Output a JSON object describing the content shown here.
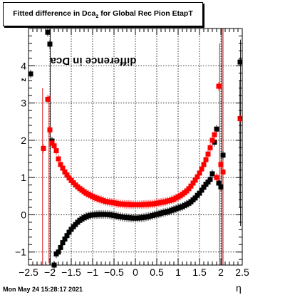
{
  "title": {
    "prefix": "Fitted difference in Dca",
    "sub": "z",
    "suffix": " for Global Rec Pion EtapT"
  },
  "ylabel": {
    "prefix": "difference in Dca",
    "sub": "z"
  },
  "xlabel": "η",
  "timestamp": "Mon May 24 15:28:17 2021",
  "colors": {
    "black_series": "#000000",
    "red_series": "#ff0000",
    "grid": "#000000"
  },
  "chart_data": {
    "type": "scatter",
    "xlim": [
      -2.5,
      2.5
    ],
    "ylim": [
      -1.35,
      5.0
    ],
    "xticks": [
      -2.5,
      -2,
      -1.5,
      -1,
      -0.5,
      0,
      0.5,
      1,
      1.5,
      2,
      2.5
    ],
    "xtick_labels": [
      "−2.5",
      "−2",
      "−1.5",
      "−1",
      "−0.5",
      "0",
      "0.5",
      "1",
      "1.5",
      "2",
      "2.5"
    ],
    "yticks": [
      -1,
      0,
      1,
      2,
      3,
      4
    ],
    "ytick_labels": [
      "−1",
      "0",
      "1",
      "2",
      "3",
      "4"
    ],
    "grid": true,
    "series": [
      {
        "color": "black",
        "x": [
          -2.45,
          -2.05,
          -2.0,
          -1.95,
          -1.9,
          -1.85,
          -1.8,
          -1.75,
          -1.7,
          -1.65,
          -1.6,
          -1.55,
          -1.5,
          -1.45,
          -1.4,
          -1.35,
          -1.3,
          -1.25,
          -1.2,
          -1.15,
          -1.1,
          -1.05,
          -1.0,
          -0.95,
          -0.9,
          -0.85,
          -0.8,
          -0.75,
          -0.7,
          -0.65,
          -0.6,
          -0.55,
          -0.5,
          -0.45,
          -0.4,
          -0.35,
          -0.3,
          -0.25,
          -0.2,
          -0.15,
          -0.1,
          -0.05,
          0.0,
          0.05,
          0.1,
          0.15,
          0.2,
          0.25,
          0.3,
          0.35,
          0.4,
          0.45,
          0.5,
          0.55,
          0.6,
          0.65,
          0.7,
          0.75,
          0.8,
          0.85,
          0.9,
          0.95,
          1.0,
          1.05,
          1.1,
          1.15,
          1.2,
          1.25,
          1.3,
          1.35,
          1.4,
          1.45,
          1.5,
          1.55,
          1.6,
          1.65,
          1.7,
          1.75,
          1.8,
          1.85,
          1.9,
          1.95,
          2.0,
          2.05,
          2.45
        ],
        "y": [
          3.78,
          4.9,
          4.58,
          1.98,
          -1.35,
          -1.05,
          -1.0,
          -0.88,
          -0.75,
          -0.65,
          -0.56,
          -0.47,
          -0.39,
          -0.32,
          -0.26,
          -0.2,
          -0.15,
          -0.11,
          -0.08,
          -0.05,
          -0.03,
          -0.015,
          -0.005,
          0.0,
          0.005,
          0.01,
          0.01,
          0.01,
          0.01,
          0.005,
          0.0,
          -0.01,
          -0.02,
          -0.03,
          -0.04,
          -0.05,
          -0.06,
          -0.07,
          -0.075,
          -0.08,
          -0.085,
          -0.09,
          -0.09,
          -0.09,
          -0.085,
          -0.08,
          -0.07,
          -0.06,
          -0.05,
          -0.035,
          -0.02,
          -0.005,
          0.01,
          0.025,
          0.04,
          0.055,
          0.07,
          0.085,
          0.1,
          0.12,
          0.14,
          0.16,
          0.18,
          0.2,
          0.22,
          0.25,
          0.28,
          0.31,
          0.35,
          0.4,
          0.45,
          0.52,
          0.58,
          0.66,
          0.74,
          0.82,
          0.88,
          0.95,
          1.1,
          1.95,
          2.3,
          0.85,
          0.75,
          1.6,
          4.1
        ]
      },
      {
        "color": "red",
        "x": [
          -2.15,
          -2.05,
          -2.0,
          -1.95,
          -1.9,
          -1.85,
          -1.8,
          -1.75,
          -1.7,
          -1.65,
          -1.6,
          -1.55,
          -1.5,
          -1.45,
          -1.4,
          -1.35,
          -1.3,
          -1.25,
          -1.2,
          -1.15,
          -1.1,
          -1.05,
          -1.0,
          -0.95,
          -0.9,
          -0.85,
          -0.8,
          -0.75,
          -0.7,
          -0.65,
          -0.6,
          -0.55,
          -0.5,
          -0.45,
          -0.4,
          -0.35,
          -0.3,
          -0.25,
          -0.2,
          -0.15,
          -0.1,
          -0.05,
          0.0,
          0.05,
          0.1,
          0.15,
          0.2,
          0.25,
          0.3,
          0.35,
          0.4,
          0.45,
          0.5,
          0.55,
          0.6,
          0.65,
          0.7,
          0.75,
          0.8,
          0.85,
          0.9,
          0.95,
          1.0,
          1.05,
          1.1,
          1.15,
          1.2,
          1.25,
          1.3,
          1.35,
          1.4,
          1.45,
          1.5,
          1.55,
          1.6,
          1.65,
          1.7,
          1.75,
          1.8,
          1.85,
          1.9,
          1.95,
          2.0,
          2.05,
          2.45
        ],
        "y": [
          1.78,
          3.1,
          2.28,
          1.92,
          1.85,
          1.72,
          1.5,
          1.35,
          1.25,
          1.15,
          1.07,
          0.99,
          0.92,
          0.86,
          0.8,
          0.75,
          0.7,
          0.66,
          0.62,
          0.58,
          0.55,
          0.52,
          0.49,
          0.46,
          0.44,
          0.42,
          0.4,
          0.38,
          0.36,
          0.35,
          0.34,
          0.33,
          0.32,
          0.31,
          0.3,
          0.29,
          0.29,
          0.28,
          0.28,
          0.28,
          0.27,
          0.27,
          0.27,
          0.27,
          0.27,
          0.27,
          0.28,
          0.28,
          0.28,
          0.29,
          0.29,
          0.3,
          0.31,
          0.32,
          0.33,
          0.34,
          0.35,
          0.37,
          0.38,
          0.4,
          0.42,
          0.45,
          0.48,
          0.51,
          0.55,
          0.59,
          0.64,
          0.7,
          0.77,
          0.85,
          0.93,
          1.02,
          1.12,
          1.23,
          1.35,
          1.48,
          1.63,
          1.8,
          2.0,
          2.15,
          1.0,
          3.45,
          1.35,
          1.15,
          2.58
        ]
      }
    ]
  }
}
